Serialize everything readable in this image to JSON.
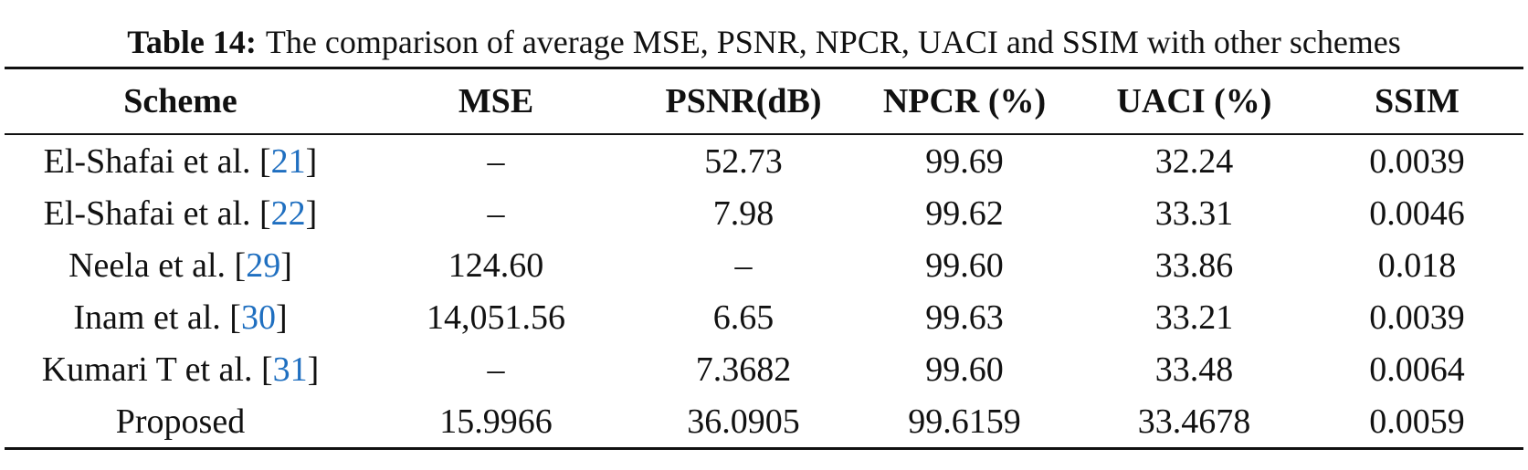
{
  "caption": {
    "label": "Table 14:",
    "text": "The comparison of average MSE, PSNR, NPCR, UACI and SSIM with other schemes"
  },
  "table": {
    "header": [
      "Scheme",
      "MSE",
      "PSNR(dB)",
      "NPCR (%)",
      "UACI (%)",
      "SSIM"
    ],
    "rows": [
      {
        "scheme": [
          "El-Shafai et al. [",
          "21",
          "]"
        ],
        "cells": [
          "–",
          "52.73",
          "99.69",
          "32.24",
          "0.0039"
        ]
      },
      {
        "scheme": [
          "El-Shafai et al. [",
          "22",
          "]"
        ],
        "cells": [
          "–",
          "7.98",
          "99.62",
          "33.31",
          "0.0046"
        ]
      },
      {
        "scheme": [
          "Neela et al. [",
          "29",
          "]"
        ],
        "cells": [
          "124.60",
          "–",
          "99.60",
          "33.86",
          "0.018"
        ]
      },
      {
        "scheme": [
          "Inam et al. [",
          "30",
          "]"
        ],
        "cells": [
          "14,051.56",
          "6.65",
          "99.63",
          "33.21",
          "0.0039"
        ]
      },
      {
        "scheme": [
          "Kumari T et al. [",
          "31",
          "]"
        ],
        "cells": [
          "–",
          "7.3682",
          "99.60",
          "33.48",
          "0.0064"
        ]
      },
      {
        "scheme": [
          "Proposed"
        ],
        "cells": [
          "15.9966",
          "36.0905",
          "99.6159",
          "33.4678",
          "0.0059"
        ]
      }
    ]
  }
}
